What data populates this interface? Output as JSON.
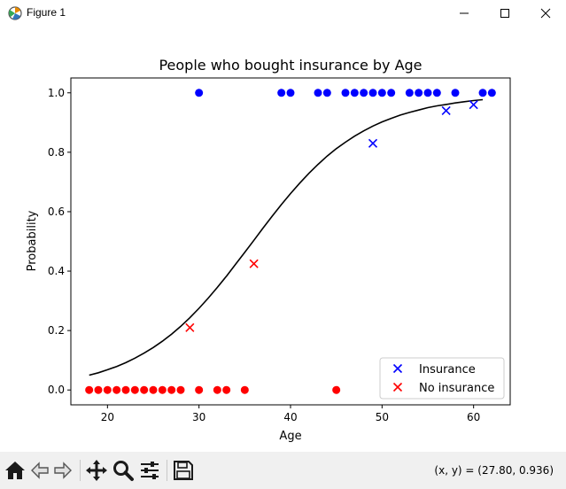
{
  "window": {
    "title": "Figure 1",
    "icons": {
      "app": "matplotlib-figure-icon",
      "minimize": "minimize-icon",
      "maximize": "maximize-icon",
      "close": "close-icon"
    }
  },
  "chart_data": {
    "type": "scatter",
    "title": "People who bought insurance by Age",
    "xlabel": "Age",
    "ylabel": "Probability",
    "xlim": [
      16,
      64
    ],
    "ylim": [
      -0.05,
      1.05
    ],
    "xticks": [
      20,
      30,
      40,
      50,
      60
    ],
    "yticks": [
      0.0,
      0.2,
      0.4,
      0.6,
      0.8,
      1.0
    ],
    "ytick_labels": [
      "0.0",
      "0.2",
      "0.4",
      "0.6",
      "0.8",
      "1.0"
    ],
    "grid": false,
    "legend_position": "lower-right",
    "observed": [
      {
        "x": 30,
        "y": 1,
        "color": "#0000ff"
      },
      {
        "x": 39,
        "y": 1,
        "color": "#0000ff"
      },
      {
        "x": 40,
        "y": 1,
        "color": "#0000ff"
      },
      {
        "x": 43,
        "y": 1,
        "color": "#0000ff"
      },
      {
        "x": 44,
        "y": 1,
        "color": "#0000ff"
      },
      {
        "x": 46,
        "y": 1,
        "color": "#0000ff"
      },
      {
        "x": 47,
        "y": 1,
        "color": "#0000ff"
      },
      {
        "x": 48,
        "y": 1,
        "color": "#0000ff"
      },
      {
        "x": 49,
        "y": 1,
        "color": "#0000ff"
      },
      {
        "x": 50,
        "y": 1,
        "color": "#0000ff"
      },
      {
        "x": 51,
        "y": 1,
        "color": "#0000ff"
      },
      {
        "x": 53,
        "y": 1,
        "color": "#0000ff"
      },
      {
        "x": 54,
        "y": 1,
        "color": "#0000ff"
      },
      {
        "x": 55,
        "y": 1,
        "color": "#0000ff"
      },
      {
        "x": 56,
        "y": 1,
        "color": "#0000ff"
      },
      {
        "x": 58,
        "y": 1,
        "color": "#0000ff"
      },
      {
        "x": 61,
        "y": 1,
        "color": "#0000ff"
      },
      {
        "x": 62,
        "y": 1,
        "color": "#0000ff"
      },
      {
        "x": 18,
        "y": 0,
        "color": "#ff0000"
      },
      {
        "x": 19,
        "y": 0,
        "color": "#ff0000"
      },
      {
        "x": 20,
        "y": 0,
        "color": "#ff0000"
      },
      {
        "x": 21,
        "y": 0,
        "color": "#ff0000"
      },
      {
        "x": 22,
        "y": 0,
        "color": "#ff0000"
      },
      {
        "x": 23,
        "y": 0,
        "color": "#ff0000"
      },
      {
        "x": 24,
        "y": 0,
        "color": "#ff0000"
      },
      {
        "x": 25,
        "y": 0,
        "color": "#ff0000"
      },
      {
        "x": 26,
        "y": 0,
        "color": "#ff0000"
      },
      {
        "x": 27,
        "y": 0,
        "color": "#ff0000"
      },
      {
        "x": 28,
        "y": 0,
        "color": "#ff0000"
      },
      {
        "x": 30,
        "y": 0,
        "color": "#ff0000"
      },
      {
        "x": 32,
        "y": 0,
        "color": "#ff0000"
      },
      {
        "x": 33,
        "y": 0,
        "color": "#ff0000"
      },
      {
        "x": 35,
        "y": 0,
        "color": "#ff0000"
      },
      {
        "x": 45,
        "y": 0,
        "color": "#ff0000"
      }
    ],
    "curve": {
      "color": "#000000",
      "x": [
        18,
        19,
        20,
        21,
        22,
        23,
        24,
        25,
        26,
        27,
        28,
        29,
        30,
        31,
        32,
        33,
        34,
        35,
        36,
        37,
        38,
        39,
        40,
        41,
        42,
        43,
        44,
        45,
        46,
        47,
        48,
        49,
        50,
        51,
        52,
        53,
        54,
        55,
        56,
        57,
        58,
        59,
        60,
        61
      ],
      "y": [
        0.05,
        0.058,
        0.068,
        0.079,
        0.092,
        0.107,
        0.124,
        0.143,
        0.164,
        0.188,
        0.214,
        0.243,
        0.275,
        0.309,
        0.345,
        0.383,
        0.423,
        0.463,
        0.504,
        0.545,
        0.585,
        0.624,
        0.661,
        0.696,
        0.729,
        0.759,
        0.787,
        0.812,
        0.834,
        0.854,
        0.872,
        0.888,
        0.902,
        0.914,
        0.925,
        0.934,
        0.942,
        0.95,
        0.956,
        0.961,
        0.966,
        0.97,
        0.974,
        0.977
      ]
    },
    "series": [
      {
        "name": "Insurance",
        "marker": "x",
        "color": "#0000ff",
        "x": [
          49,
          57,
          60
        ],
        "y": [
          0.83,
          0.94,
          0.96
        ]
      },
      {
        "name": "No insurance",
        "marker": "x",
        "color": "#ff0000",
        "x": [
          29,
          36
        ],
        "y": [
          0.21,
          0.425
        ]
      }
    ]
  },
  "toolbar": {
    "coords": "(x, y) = (27.80, 0.936)",
    "tools": [
      {
        "name": "home-icon"
      },
      {
        "name": "back-icon"
      },
      {
        "name": "forward-icon"
      },
      {
        "name": "pan-icon"
      },
      {
        "name": "zoom-icon"
      },
      {
        "name": "configure-subplots-icon"
      },
      {
        "name": "save-icon"
      }
    ]
  }
}
